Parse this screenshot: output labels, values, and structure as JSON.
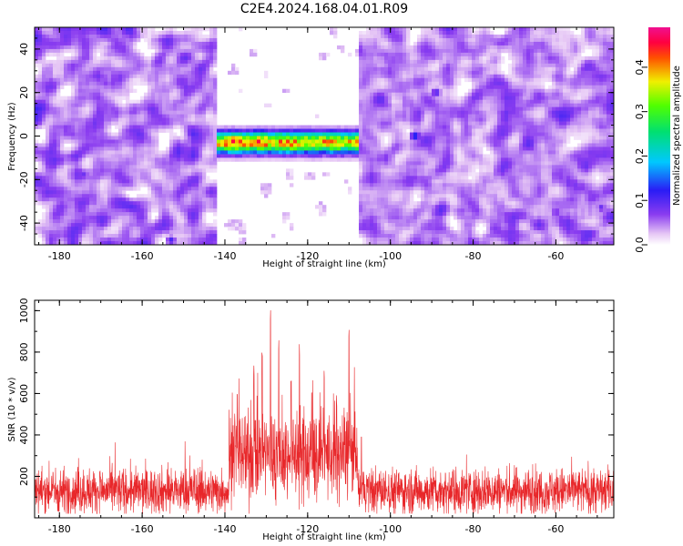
{
  "figure_title": "C2E4.2024.168.04.01.R09",
  "chart_data": [
    {
      "type": "heatmap",
      "title": "C2E4.2024.168.04.01.R09",
      "xlabel": "Height of straight line (km)",
      "ylabel": "Frequency (Hz)",
      "xlim": [
        -186,
        -46
      ],
      "ylim": [
        -50,
        50
      ],
      "x_ticks": [
        -180,
        -160,
        -140,
        -120,
        -100,
        -80,
        -60
      ],
      "y_ticks": [
        -40,
        -20,
        0,
        20,
        40
      ],
      "colorbar": {
        "label": "Normalized spectral amplitude",
        "range": [
          0.0,
          0.49
        ],
        "ticks": [
          0.0,
          0.1,
          0.2,
          0.3,
          0.4
        ],
        "colormap": "white-purple-blue-cyan-green-yellow-red-magenta"
      },
      "regions": [
        {
          "x_range": [
            -186,
            -142
          ],
          "mean_amplitude": 0.04,
          "description": "background noise"
        },
        {
          "x_range": [
            -142,
            -108
          ],
          "mean_amplitude": 0.01,
          "description": "quiet band"
        },
        {
          "x_range": [
            -108,
            -46
          ],
          "mean_amplitude": 0.04,
          "description": "background noise"
        }
      ],
      "signal": {
        "x_range": [
          -142,
          -108
        ],
        "frequency_center": -3,
        "frequency_halfwidth": 6,
        "peak_amplitude": 0.44
      },
      "hotspots": [
        {
          "x": -94,
          "y": 0,
          "value": 0.16
        },
        {
          "x": -89,
          "y": 20,
          "value": 0.12
        },
        {
          "x": -153,
          "y": -48,
          "value": 0.12
        },
        {
          "x": -49,
          "y": -33,
          "value": 0.1
        },
        {
          "x": -174,
          "y": -18,
          "value": 0.1
        },
        {
          "x": -60,
          "y": -35,
          "value": 0.1
        },
        {
          "x": -178,
          "y": 43,
          "value": 0.08
        }
      ]
    },
    {
      "type": "line",
      "xlabel": "Height of straight line (km)",
      "ylabel": "SNR (10 * v/v)",
      "xlim": [
        -186,
        -46
      ],
      "ylim": [
        0,
        1050
      ],
      "x_ticks": [
        -180,
        -160,
        -140,
        -120,
        -100,
        -80,
        -60
      ],
      "y_ticks": [
        200,
        400,
        600,
        800,
        1000
      ],
      "line_color": "#e8272a",
      "baseline": {
        "typical": 130,
        "min": 20,
        "max": 390
      },
      "signal_region": {
        "x_range": [
          -139,
          -108
        ],
        "typical": 300
      },
      "peaks": [
        {
          "x": -129,
          "y": 1050
        },
        {
          "x": -107,
          "y": 960
        },
        {
          "x": -110,
          "y": 940
        },
        {
          "x": -127,
          "y": 860
        },
        {
          "x": -122,
          "y": 855
        },
        {
          "x": -131,
          "y": 800
        },
        {
          "x": -133,
          "y": 760
        },
        {
          "x": -116,
          "y": 710
        },
        {
          "x": -124,
          "y": 690
        },
        {
          "x": -119,
          "y": 640
        },
        {
          "x": -137,
          "y": 600
        },
        {
          "x": -113,
          "y": 590
        }
      ]
    }
  ]
}
